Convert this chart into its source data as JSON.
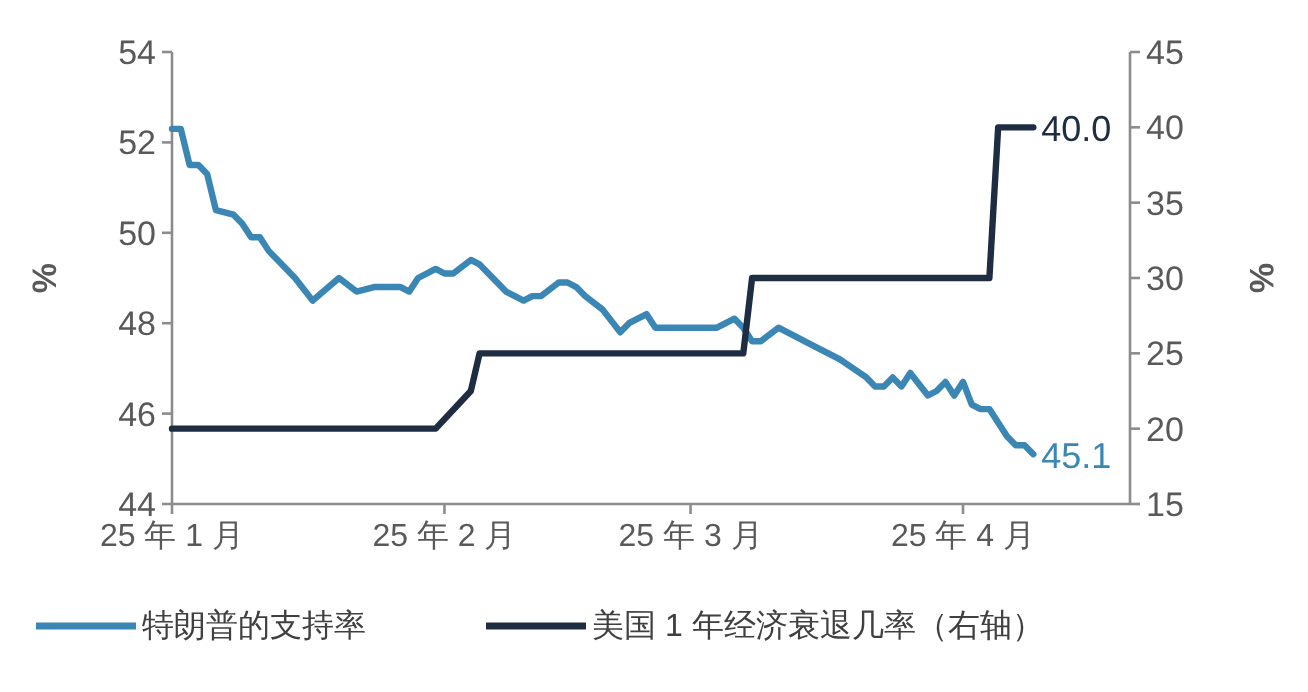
{
  "chart_data": {
    "type": "line",
    "xlim": [
      "--01-01",
      "--04-20"
    ],
    "xticks": [
      {
        "value": "--01-01",
        "label": "25 年 1 月"
      },
      {
        "value": "--02-01",
        "label": "25 年 2 月"
      },
      {
        "value": "--03-01",
        "label": "25 年 3 月"
      },
      {
        "value": "--04-01",
        "label": "25 年 4 月"
      }
    ],
    "ylim": [
      44,
      54
    ],
    "yticks": [
      44,
      46,
      48,
      50,
      52,
      54
    ],
    "y2lim": [
      15,
      45
    ],
    "y2ticks": [
      15,
      20,
      25,
      30,
      35,
      40,
      45
    ],
    "ylabel": "%",
    "y2label": "%",
    "legend": "bottom",
    "series": [
      {
        "name": "特朗普的支持率",
        "color": "#3a87b5",
        "x": [
          "--01-01",
          "--01-02",
          "--01-03",
          "--01-04",
          "--01-05",
          "--01-06",
          "--01-08",
          "--01-09",
          "--01-10",
          "--01-11",
          "--01-12",
          "--01-15",
          "--01-17",
          "--01-20",
          "--01-22",
          "--01-24",
          "--01-27",
          "--01-28",
          "--01-29",
          "--01-31",
          "--02-01",
          "--02-02",
          "--02-04",
          "--02-05",
          "--02-07",
          "--02-08",
          "--02-10",
          "--02-11",
          "--02-12",
          "--02-14",
          "--02-15",
          "--02-16",
          "--02-17",
          "--02-19",
          "--02-21",
          "--02-22",
          "--02-24",
          "--02-25",
          "--02-26",
          "--03-04",
          "--03-06",
          "--03-07",
          "--03-08",
          "--03-09",
          "--03-11",
          "--03-15",
          "--03-16",
          "--03-18",
          "--03-21",
          "--03-22",
          "--03-23",
          "--03-24",
          "--03-25",
          "--03-26",
          "--03-28",
          "--03-29",
          "--03-30",
          "--03-31",
          "--04-01",
          "--04-02",
          "--04-03",
          "--04-04",
          "--04-06",
          "--04-07",
          "--04-08",
          "--04-09"
        ],
        "values": [
          52.3,
          52.3,
          51.5,
          51.5,
          51.3,
          50.5,
          50.4,
          50.2,
          49.9,
          49.9,
          49.6,
          49.0,
          48.5,
          49.0,
          48.7,
          48.8,
          48.8,
          48.7,
          49.0,
          49.2,
          49.1,
          49.1,
          49.4,
          49.3,
          48.9,
          48.7,
          48.5,
          48.6,
          48.6,
          48.9,
          48.9,
          48.8,
          48.6,
          48.3,
          47.8,
          48.0,
          48.2,
          47.9,
          47.9,
          47.9,
          48.1,
          47.9,
          47.6,
          47.6,
          47.9,
          47.5,
          47.4,
          47.2,
          46.8,
          46.6,
          46.6,
          46.8,
          46.6,
          46.9,
          46.4,
          46.5,
          46.7,
          46.4,
          46.7,
          46.2,
          46.1,
          46.1,
          45.5,
          45.3,
          45.3,
          45.1
        ],
        "value_labels": [
          null,
          null,
          null,
          null,
          null,
          null,
          null,
          null,
          null,
          null,
          null,
          null,
          null,
          null,
          null,
          null,
          null,
          null,
          null,
          null,
          null,
          null,
          null,
          null,
          null,
          null,
          null,
          null,
          null,
          null,
          null,
          null,
          null,
          null,
          null,
          null,
          null,
          null,
          null,
          null,
          null,
          null,
          null,
          null,
          null,
          null,
          null,
          null,
          null,
          null,
          null,
          null,
          null,
          null,
          null,
          null,
          null,
          null,
          null,
          null,
          null,
          null,
          null,
          null,
          null,
          "45.1"
        ]
      },
      {
        "name": "美国 1 年经济衰退几率（右轴）",
        "color": "#1f2d42",
        "axis": "y2",
        "x": [
          "--01-01",
          "--01-31",
          "--02-04",
          "--02-05",
          "--03-07",
          "--03-08",
          "--04-04",
          "--04-05",
          "--04-09"
        ],
        "values": [
          20,
          20,
          22.5,
          25,
          25,
          30,
          30,
          40,
          40
        ],
        "value_labels": [
          null,
          null,
          null,
          null,
          null,
          null,
          null,
          null,
          "40.0"
        ]
      }
    ]
  }
}
